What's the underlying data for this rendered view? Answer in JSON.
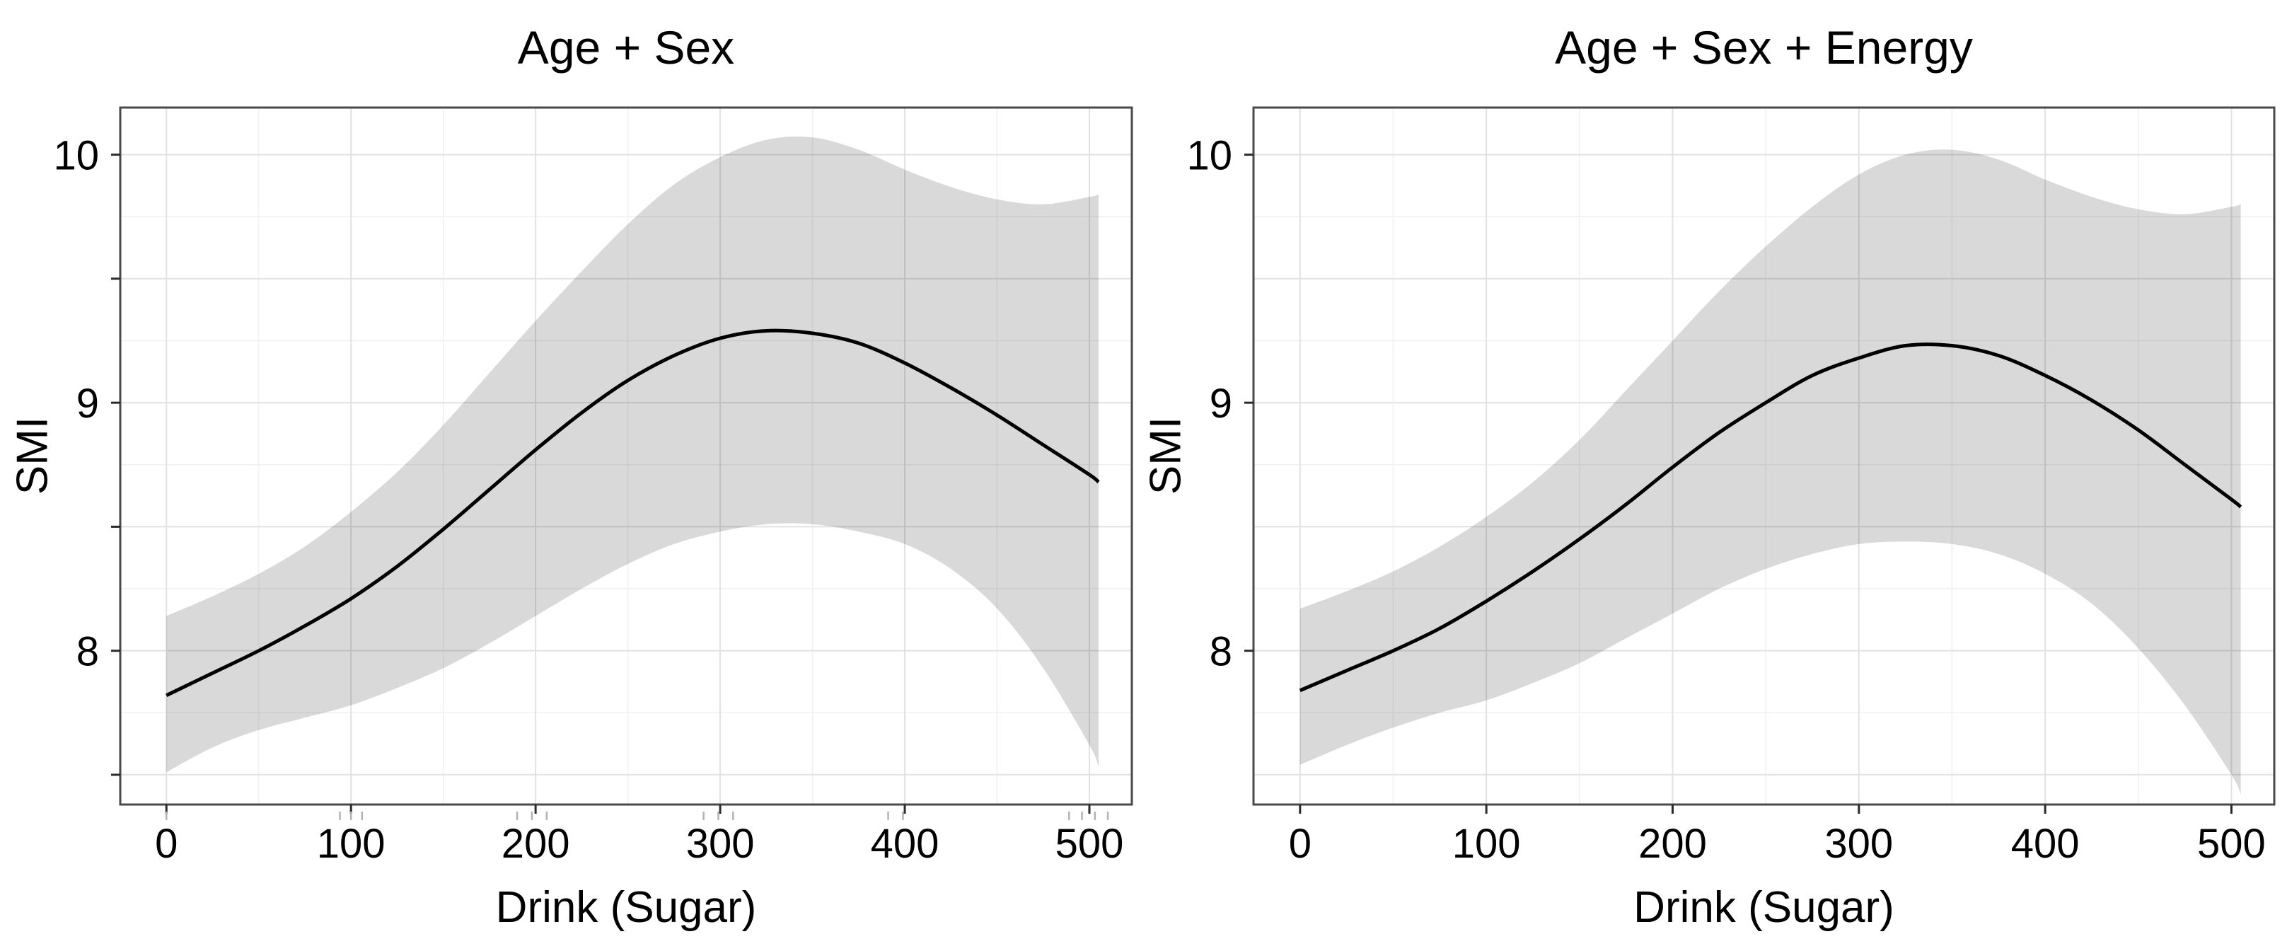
{
  "style": {
    "background": "#ffffff",
    "band_color": "rgba(0,0,0,0.15)",
    "band_flat_color": "#d8d8d8",
    "line_color": "#000000",
    "grid_major_color": "#e2e2e2",
    "grid_minor_color": "#f1f1f1",
    "border_color": "#4a4a4a",
    "tick_color": "#2b2b2b",
    "rug_color": "#b3b3b3",
    "text_color": "#000000"
  },
  "chart_data": [
    {
      "type": "line",
      "title": "Age + Sex",
      "xlabel": "Drink (Sugar)",
      "ylabel": "SMI",
      "xlim": [
        -25,
        523
      ],
      "ylim": [
        7.38,
        10.19
      ],
      "grid": {
        "x_major": [
          0,
          100,
          200,
          300,
          400,
          500
        ],
        "x_minor": [
          50,
          150,
          250,
          350,
          450
        ],
        "y_major": [
          7.5,
          8,
          8.5,
          9,
          9.5,
          10
        ],
        "y_minor": [
          7.75,
          8.25,
          8.75,
          9.25,
          9.75
        ],
        "grid_on": true
      },
      "x_ticks": [
        {
          "value": 0,
          "label": "0"
        },
        {
          "value": 100,
          "label": "100"
        },
        {
          "value": 200,
          "label": "200"
        },
        {
          "value": 300,
          "label": "300"
        },
        {
          "value": 400,
          "label": "400"
        },
        {
          "value": 500,
          "label": "500"
        }
      ],
      "y_ticks": [
        {
          "value": 8,
          "label": "8"
        },
        {
          "value": 9,
          "label": "9"
        },
        {
          "value": 10,
          "label": "10"
        }
      ],
      "y_unlabeled_ticks": [
        7.5,
        8.5,
        9.5
      ],
      "x": [
        0,
        25,
        50,
        75,
        100,
        125,
        150,
        175,
        200,
        225,
        250,
        275,
        300,
        325,
        350,
        375,
        400,
        425,
        450,
        475,
        500,
        505
      ],
      "series": [
        {
          "name": "smooth fit",
          "values": [
            7.82,
            7.91,
            8.0,
            8.1,
            8.21,
            8.34,
            8.49,
            8.65,
            8.81,
            8.96,
            9.09,
            9.19,
            9.26,
            9.29,
            9.28,
            9.24,
            9.16,
            9.06,
            8.95,
            8.83,
            8.71,
            8.68
          ]
        }
      ],
      "band": {
        "name": "confidence interval",
        "upper": [
          8.14,
          8.22,
          8.31,
          8.42,
          8.56,
          8.72,
          8.91,
          9.12,
          9.33,
          9.53,
          9.72,
          9.88,
          9.99,
          10.06,
          10.07,
          10.02,
          9.94,
          9.87,
          9.82,
          9.8,
          9.83,
          9.84
        ],
        "lower": [
          7.51,
          7.61,
          7.68,
          7.73,
          7.78,
          7.85,
          7.93,
          8.03,
          8.14,
          8.25,
          8.35,
          8.43,
          8.48,
          8.51,
          8.51,
          8.48,
          8.43,
          8.33,
          8.17,
          7.93,
          7.62,
          7.53
        ]
      },
      "rug_x": [
        0,
        94,
        100,
        106,
        190,
        198,
        206,
        291,
        299,
        307,
        391,
        399,
        489,
        496,
        503,
        510
      ],
      "legend": null
    },
    {
      "type": "line",
      "title": "Age + Sex + Energy",
      "xlabel": "Drink (Sugar)",
      "ylabel": "SMI",
      "xlim": [
        -25,
        523
      ],
      "ylim": [
        7.38,
        10.19
      ],
      "grid": {
        "x_major": [
          0,
          100,
          200,
          300,
          400,
          500
        ],
        "x_minor": [
          50,
          150,
          250,
          350,
          450
        ],
        "y_major": [
          7.5,
          8,
          8.5,
          9,
          9.5,
          10
        ],
        "y_minor": [
          7.75,
          8.25,
          8.75,
          9.25,
          9.75
        ],
        "grid_on": true
      },
      "x_ticks": [
        {
          "value": 0,
          "label": "0"
        },
        {
          "value": 100,
          "label": "100"
        },
        {
          "value": 200,
          "label": "200"
        },
        {
          "value": 300,
          "label": "300"
        },
        {
          "value": 400,
          "label": "400"
        },
        {
          "value": 500,
          "label": "500"
        }
      ],
      "y_ticks": [
        {
          "value": 8,
          "label": "8"
        },
        {
          "value": 9,
          "label": "9"
        },
        {
          "value": 10,
          "label": "10"
        }
      ],
      "y_unlabeled_ticks": [],
      "x": [
        0,
        25,
        50,
        75,
        100,
        125,
        150,
        175,
        200,
        225,
        250,
        275,
        300,
        325,
        350,
        375,
        400,
        425,
        450,
        475,
        500,
        505
      ],
      "series": [
        {
          "name": "smooth fit",
          "values": [
            7.84,
            7.92,
            8.0,
            8.09,
            8.2,
            8.32,
            8.45,
            8.59,
            8.74,
            8.88,
            9.0,
            9.11,
            9.18,
            9.23,
            9.23,
            9.19,
            9.11,
            9.01,
            8.89,
            8.75,
            8.61,
            8.58
          ]
        }
      ],
      "band": {
        "name": "confidence interval",
        "upper": [
          8.17,
          8.24,
          8.32,
          8.42,
          8.54,
          8.68,
          8.85,
          9.05,
          9.25,
          9.45,
          9.63,
          9.79,
          9.92,
          10.0,
          10.02,
          9.98,
          9.9,
          9.83,
          9.78,
          9.76,
          9.79,
          9.8
        ],
        "lower": [
          7.54,
          7.62,
          7.69,
          7.75,
          7.8,
          7.87,
          7.95,
          8.05,
          8.15,
          8.25,
          8.33,
          8.39,
          8.43,
          8.44,
          8.43,
          8.39,
          8.31,
          8.19,
          8.01,
          7.78,
          7.5,
          7.42
        ]
      },
      "rug_x": [],
      "legend": null
    }
  ]
}
